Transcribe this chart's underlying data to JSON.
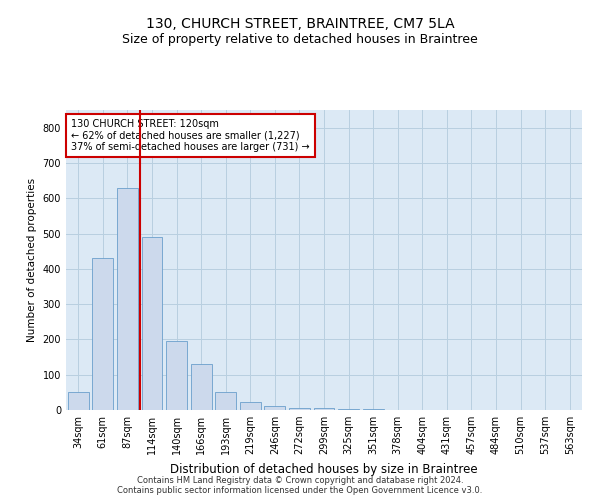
{
  "title1": "130, CHURCH STREET, BRAINTREE, CM7 5LA",
  "title2": "Size of property relative to detached houses in Braintree",
  "xlabel": "Distribution of detached houses by size in Braintree",
  "ylabel": "Number of detached properties",
  "categories": [
    "34sqm",
    "61sqm",
    "87sqm",
    "114sqm",
    "140sqm",
    "166sqm",
    "193sqm",
    "219sqm",
    "246sqm",
    "272sqm",
    "299sqm",
    "325sqm",
    "351sqm",
    "378sqm",
    "404sqm",
    "431sqm",
    "457sqm",
    "484sqm",
    "510sqm",
    "537sqm",
    "563sqm"
  ],
  "values": [
    50,
    430,
    630,
    490,
    195,
    130,
    50,
    22,
    10,
    5,
    5,
    4,
    2,
    0,
    0,
    0,
    0,
    0,
    0,
    0,
    0
  ],
  "bar_color": "#ccd9ec",
  "bar_edge_color": "#6a9fcc",
  "vline_color": "#cc0000",
  "annotation_text": "130 CHURCH STREET: 120sqm\n← 62% of detached houses are smaller (1,227)\n37% of semi-detached houses are larger (731) →",
  "annotation_box_color": "#ffffff",
  "annotation_box_edge": "#cc0000",
  "ylim": [
    0,
    850
  ],
  "yticks": [
    0,
    100,
    200,
    300,
    400,
    500,
    600,
    700,
    800
  ],
  "ax_facecolor": "#dce9f5",
  "background_color": "#ffffff",
  "grid_color": "#b8cfe0",
  "footer1": "Contains HM Land Registry data © Crown copyright and database right 2024.",
  "footer2": "Contains public sector information licensed under the Open Government Licence v3.0.",
  "title1_fontsize": 10,
  "title2_fontsize": 9,
  "tick_fontsize": 7,
  "ylabel_fontsize": 7.5,
  "xlabel_fontsize": 8.5,
  "ann_fontsize": 7,
  "footer_fontsize": 6
}
